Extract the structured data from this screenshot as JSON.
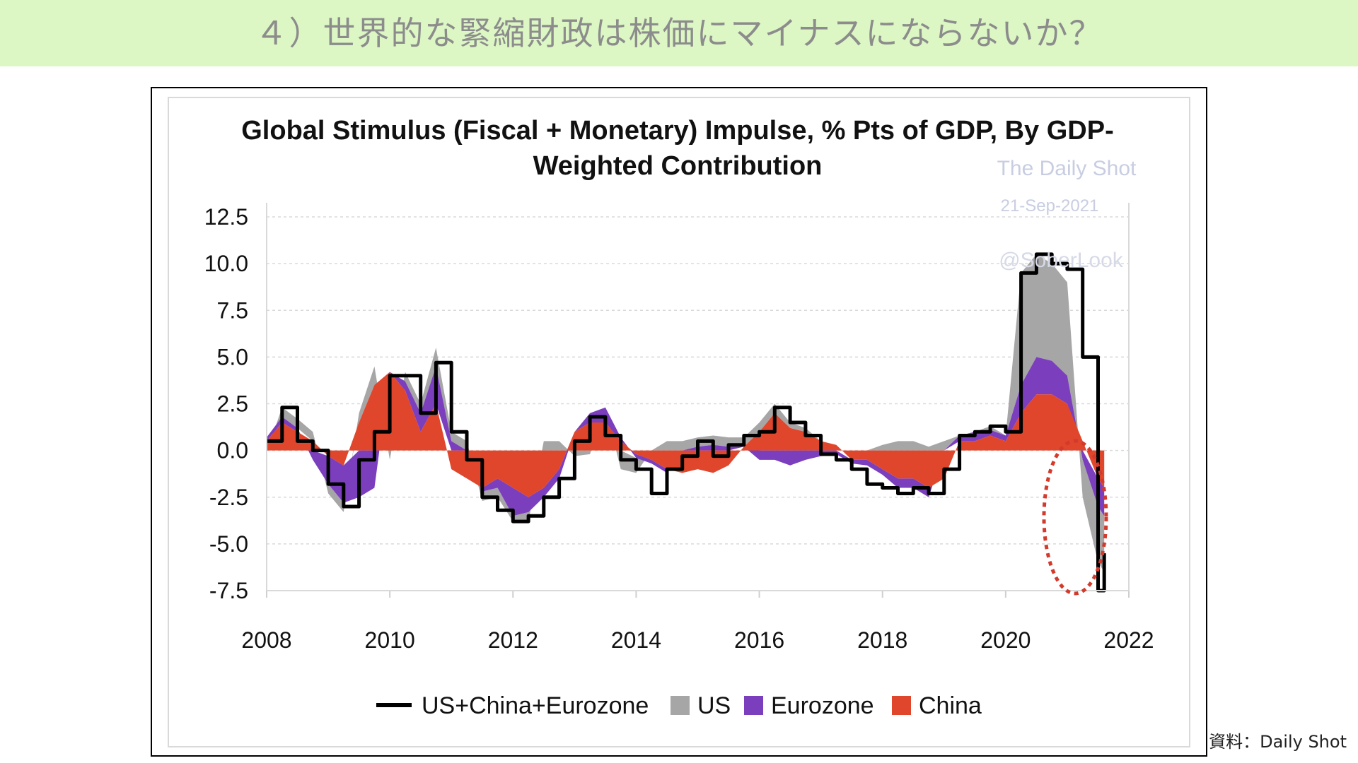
{
  "header": {
    "title": "４）世界的な緊縮財政は株価にマイナスにならないか？"
  },
  "source_note": "資料：Daily Shot",
  "watermark": {
    "line1": "The Daily Shot",
    "line2": "21-Sep-2021",
    "line3": "@SoberLook"
  },
  "colors": {
    "us": "#a6a6a6",
    "eurozone": "#7b3fbe",
    "china": "#e0462c",
    "total": "#000000",
    "highlight": "#d33a2c"
  },
  "chart_data": {
    "type": "area",
    "title": "Global Stimulus (Fiscal + Monetary) Impulse, % Pts of GDP, By GDP-Weighted Contribution",
    "title_lines": [
      "Global Stimulus (Fiscal + Monetary) Impulse, % Pts of GDP, By GDP-",
      "Weighted Contribution"
    ],
    "xlabel": "",
    "ylabel": "",
    "xlim": [
      2008,
      2022
    ],
    "ylim": [
      -7.5,
      12.5
    ],
    "x_ticks": [
      "2008",
      "2010",
      "2012",
      "2014",
      "2016",
      "2018",
      "2020",
      "2022"
    ],
    "y_ticks": [
      "12.5",
      "10.0",
      "7.5",
      "5.0",
      "2.5",
      "0.0",
      "-2.5",
      "-5.0",
      "-7.5"
    ],
    "grid": true,
    "legend_position": "bottom",
    "legend": [
      "US+China+Eurozone",
      "US",
      "Eurozone",
      "China"
    ],
    "x": [
      2008.0,
      2008.25,
      2008.5,
      2008.75,
      2009.0,
      2009.25,
      2009.5,
      2009.75,
      2010.0,
      2010.25,
      2010.5,
      2010.75,
      2011.0,
      2011.25,
      2011.5,
      2011.75,
      2012.0,
      2012.25,
      2012.5,
      2012.75,
      2013.0,
      2013.25,
      2013.5,
      2013.75,
      2014.0,
      2014.25,
      2014.5,
      2014.75,
      2015.0,
      2015.25,
      2015.5,
      2015.75,
      2016.0,
      2016.25,
      2016.5,
      2016.75,
      2017.0,
      2017.25,
      2017.5,
      2017.75,
      2018.0,
      2018.25,
      2018.5,
      2018.75,
      2019.0,
      2019.25,
      2019.5,
      2019.75,
      2020.0,
      2020.25,
      2020.5,
      2020.75,
      2021.0,
      2021.25,
      2021.5,
      2021.6
    ],
    "series": [
      {
        "name": "China",
        "values": [
          0.5,
          1.5,
          1.0,
          0.5,
          -0.3,
          -0.8,
          1.5,
          3.5,
          4.2,
          3.2,
          1.0,
          2.5,
          -1.0,
          -1.5,
          -2.0,
          -1.5,
          -2.0,
          -2.5,
          -2.0,
          -1.0,
          1.0,
          1.5,
          1.5,
          0.5,
          -0.2,
          -0.5,
          -1.0,
          -1.2,
          -1.0,
          -1.2,
          -0.8,
          0.2,
          1.0,
          2.0,
          1.2,
          1.0,
          0.5,
          0.3,
          -0.5,
          -0.5,
          -1.0,
          -1.5,
          -1.5,
          -2.0,
          -1.5,
          0.5,
          0.5,
          0.8,
          0.5,
          2.0,
          3.0,
          3.0,
          2.5,
          0.5,
          -1.5,
          -2.0
        ]
      },
      {
        "name": "Eurozone",
        "values": [
          0.2,
          0.3,
          0.2,
          -0.5,
          -1.5,
          -2.0,
          -2.5,
          -2.0,
          0.0,
          0.5,
          1.0,
          2.0,
          0.5,
          0.0,
          -0.2,
          -0.5,
          -1.5,
          -0.8,
          -0.5,
          -0.5,
          0.0,
          0.5,
          0.8,
          0.2,
          -0.2,
          -0.2,
          -0.2,
          0.0,
          0.2,
          0.3,
          0.2,
          0.0,
          -0.5,
          -0.5,
          -0.8,
          -0.5,
          -0.3,
          -0.2,
          -0.2,
          -0.3,
          -0.3,
          -0.5,
          -0.5,
          -0.5,
          0.0,
          0.3,
          0.5,
          0.3,
          0.3,
          1.5,
          2.0,
          1.8,
          1.5,
          -0.5,
          -1.5,
          -1.5
        ]
      },
      {
        "name": "US",
        "values": [
          -0.1,
          0.5,
          0.5,
          0.5,
          -0.5,
          -0.5,
          0.5,
          1.0,
          -0.5,
          0.5,
          0.5,
          1.0,
          0.5,
          0.5,
          -0.5,
          -0.5,
          -0.3,
          -0.5,
          0.5,
          0.5,
          -0.3,
          -0.2,
          0.0,
          -1.0,
          -0.8,
          0.0,
          0.5,
          0.5,
          0.5,
          0.5,
          0.5,
          0.5,
          0.5,
          0.5,
          0.3,
          0.2,
          0.0,
          0.0,
          0.0,
          0.0,
          0.3,
          0.5,
          0.5,
          0.2,
          0.5,
          0.0,
          0.0,
          0.2,
          0.0,
          6.0,
          5.5,
          5.2,
          5.0,
          -2.0,
          -3.0,
          -3.0
        ]
      },
      {
        "name": "US+China+Eurozone",
        "values": [
          0.5,
          2.3,
          0.5,
          0.0,
          -1.8,
          -3.0,
          -0.5,
          1.0,
          4.0,
          4.0,
          2.0,
          4.7,
          1.0,
          -0.5,
          -2.5,
          -3.2,
          -3.8,
          -3.5,
          -2.5,
          -1.5,
          0.5,
          1.8,
          0.8,
          -0.5,
          -1.0,
          -2.3,
          -1.0,
          -0.3,
          0.5,
          -0.3,
          0.3,
          0.8,
          1.0,
          2.3,
          1.5,
          0.8,
          -0.2,
          -0.5,
          -1.0,
          -1.8,
          -2.0,
          -2.3,
          -2.0,
          -2.3,
          -1.0,
          0.8,
          1.0,
          1.3,
          1.0,
          9.5,
          10.5,
          10.0,
          9.7,
          5.0,
          -7.5,
          -5.5
        ]
      }
    ]
  }
}
